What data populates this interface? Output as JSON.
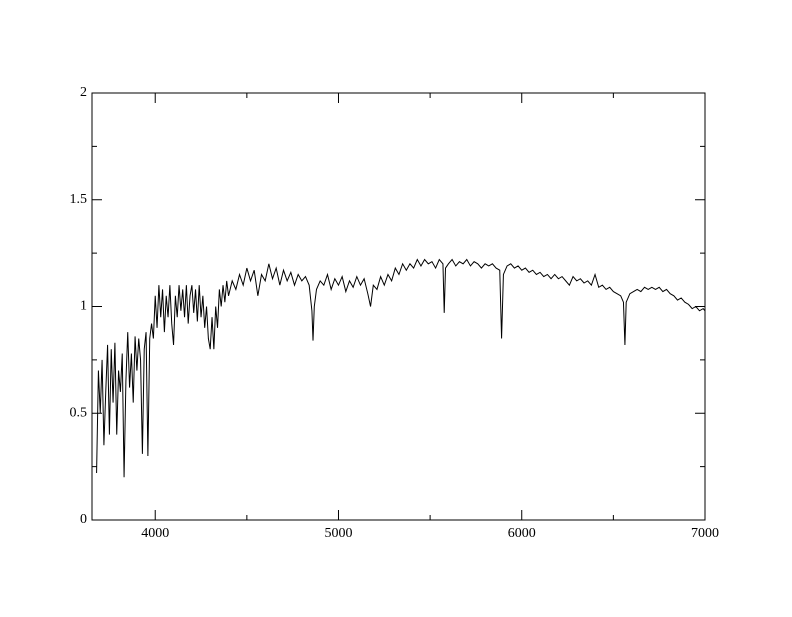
{
  "chart_data": {
    "type": "line",
    "xlim": [
      3655,
      7000
    ],
    "ylim": [
      0,
      2
    ],
    "xticks": [
      4000,
      5000,
      6000,
      7000
    ],
    "yticks": [
      0,
      0.5,
      1,
      1.5,
      2
    ],
    "xminorticks": [
      4500,
      5500,
      6500
    ],
    "yminorticks": [
      0.25,
      0.75,
      1.25,
      1.75
    ],
    "x": [
      3680,
      3690,
      3700,
      3710,
      3720,
      3730,
      3740,
      3750,
      3760,
      3770,
      3780,
      3790,
      3800,
      3810,
      3820,
      3830,
      3840,
      3850,
      3860,
      3870,
      3880,
      3890,
      3900,
      3910,
      3920,
      3930,
      3940,
      3950,
      3960,
      3970,
      3980,
      3990,
      4000,
      4010,
      4020,
      4030,
      4040,
      4050,
      4060,
      4070,
      4080,
      4090,
      4100,
      4110,
      4120,
      4130,
      4140,
      4150,
      4160,
      4170,
      4180,
      4190,
      4200,
      4210,
      4220,
      4230,
      4240,
      4250,
      4260,
      4270,
      4280,
      4290,
      4300,
      4310,
      4320,
      4330,
      4340,
      4350,
      4360,
      4370,
      4380,
      4390,
      4400,
      4420,
      4440,
      4460,
      4480,
      4500,
      4520,
      4540,
      4560,
      4580,
      4600,
      4620,
      4640,
      4660,
      4680,
      4700,
      4720,
      4740,
      4760,
      4780,
      4800,
      4820,
      4840,
      4855,
      4861,
      4868,
      4880,
      4900,
      4920,
      4940,
      4960,
      4980,
      5000,
      5020,
      5040,
      5060,
      5080,
      5100,
      5120,
      5140,
      5160,
      5175,
      5190,
      5210,
      5230,
      5250,
      5270,
      5290,
      5310,
      5330,
      5350,
      5370,
      5390,
      5410,
      5430,
      5450,
      5470,
      5490,
      5510,
      5530,
      5550,
      5570,
      5577,
      5584,
      5600,
      5620,
      5640,
      5660,
      5680,
      5700,
      5720,
      5740,
      5760,
      5780,
      5800,
      5820,
      5840,
      5860,
      5880,
      5890,
      5900,
      5920,
      5940,
      5960,
      5980,
      6000,
      6020,
      6040,
      6060,
      6080,
      6100,
      6120,
      6140,
      6160,
      6180,
      6200,
      6220,
      6240,
      6260,
      6280,
      6300,
      6320,
      6340,
      6360,
      6380,
      6400,
      6420,
      6440,
      6460,
      6480,
      6500,
      6520,
      6540,
      6555,
      6563,
      6570,
      6590,
      6610,
      6630,
      6650,
      6670,
      6690,
      6710,
      6730,
      6750,
      6770,
      6790,
      6810,
      6830,
      6850,
      6870,
      6890,
      6910,
      6930,
      6950,
      6970,
      6990,
      7000
    ],
    "series": [
      {
        "color": "#000000",
        "values": [
          0.22,
          0.7,
          0.5,
          0.75,
          0.35,
          0.6,
          0.82,
          0.4,
          0.8,
          0.55,
          0.83,
          0.4,
          0.7,
          0.6,
          0.78,
          0.2,
          0.65,
          0.88,
          0.62,
          0.78,
          0.55,
          0.86,
          0.7,
          0.85,
          0.75,
          0.31,
          0.8,
          0.88,
          0.3,
          0.85,
          0.92,
          0.85,
          1.05,
          0.9,
          1.1,
          0.95,
          1.08,
          0.88,
          1.05,
          0.95,
          1.1,
          0.92,
          0.82,
          1.05,
          0.95,
          1.1,
          0.98,
          1.08,
          0.95,
          1.1,
          0.92,
          1.05,
          1.1,
          0.97,
          1.08,
          0.93,
          1.1,
          0.95,
          1.05,
          0.9,
          1.0,
          0.85,
          0.8,
          0.95,
          0.8,
          1.0,
          0.9,
          1.08,
          1.0,
          1.1,
          1.02,
          1.12,
          1.05,
          1.12,
          1.08,
          1.15,
          1.1,
          1.18,
          1.12,
          1.17,
          1.05,
          1.15,
          1.12,
          1.2,
          1.13,
          1.18,
          1.1,
          1.17,
          1.12,
          1.16,
          1.1,
          1.15,
          1.12,
          1.14,
          1.1,
          0.98,
          0.84,
          1.0,
          1.08,
          1.12,
          1.1,
          1.15,
          1.08,
          1.13,
          1.1,
          1.14,
          1.07,
          1.12,
          1.09,
          1.14,
          1.1,
          1.13,
          1.06,
          1.0,
          1.1,
          1.08,
          1.14,
          1.1,
          1.15,
          1.12,
          1.18,
          1.15,
          1.2,
          1.17,
          1.2,
          1.18,
          1.22,
          1.19,
          1.22,
          1.2,
          1.21,
          1.18,
          1.22,
          1.2,
          0.97,
          1.18,
          1.2,
          1.22,
          1.19,
          1.21,
          1.2,
          1.22,
          1.19,
          1.21,
          1.2,
          1.18,
          1.2,
          1.19,
          1.2,
          1.18,
          1.17,
          0.85,
          1.15,
          1.19,
          1.2,
          1.18,
          1.19,
          1.17,
          1.18,
          1.16,
          1.17,
          1.15,
          1.16,
          1.14,
          1.15,
          1.13,
          1.15,
          1.13,
          1.14,
          1.12,
          1.1,
          1.14,
          1.12,
          1.13,
          1.11,
          1.12,
          1.1,
          1.15,
          1.09,
          1.1,
          1.08,
          1.09,
          1.07,
          1.06,
          1.05,
          1.02,
          0.82,
          1.02,
          1.06,
          1.07,
          1.08,
          1.07,
          1.09,
          1.08,
          1.09,
          1.08,
          1.09,
          1.07,
          1.08,
          1.06,
          1.05,
          1.03,
          1.04,
          1.02,
          1.01,
          0.99,
          1.0,
          0.98,
          0.99,
          0.98
        ]
      }
    ]
  }
}
